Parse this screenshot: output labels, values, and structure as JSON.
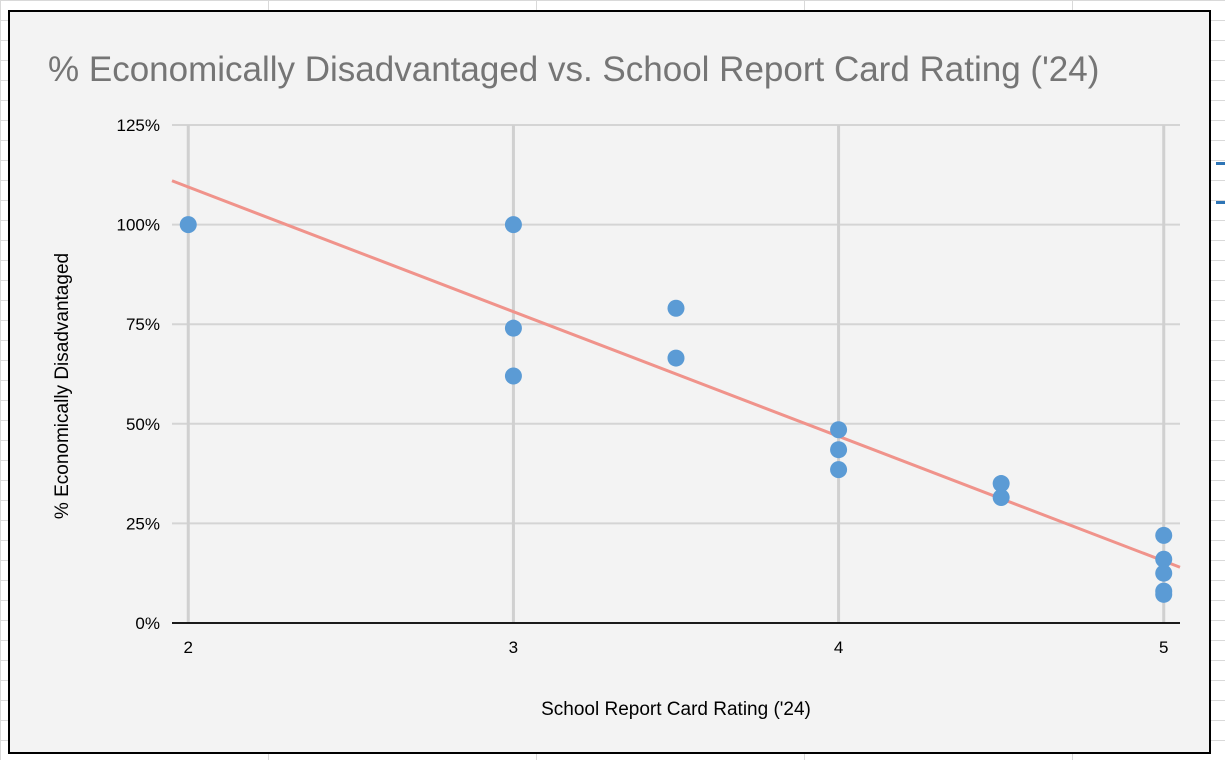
{
  "chart_data": {
    "type": "scatter",
    "title": "% Economically Disadvantaged vs. School Report Card Rating ('24)",
    "xlabel": "School Report Card Rating ('24)",
    "ylabel": "% Economically Disadvantaged",
    "xlim": [
      1.95,
      5.05
    ],
    "ylim": [
      0,
      1.25
    ],
    "xticks": [
      2,
      3,
      4,
      5
    ],
    "xtick_labels": [
      "2",
      "3",
      "4",
      "5"
    ],
    "yticks": [
      0,
      0.25,
      0.5,
      0.75,
      1.0,
      1.25
    ],
    "ytick_labels": [
      "0%",
      "25%",
      "50%",
      "75%",
      "100%",
      "125%"
    ],
    "grid": {
      "horizontal": true,
      "vertical": true
    },
    "legend": "none",
    "series": [
      {
        "marker_color": "#5b9bd5",
        "points": [
          {
            "x": 2,
            "y": 1.0
          },
          {
            "x": 3,
            "y": 1.0
          },
          {
            "x": 3,
            "y": 0.74
          },
          {
            "x": 3,
            "y": 0.62
          },
          {
            "x": 3.5,
            "y": 0.79
          },
          {
            "x": 3.5,
            "y": 0.665
          },
          {
            "x": 4,
            "y": 0.485
          },
          {
            "x": 4,
            "y": 0.435
          },
          {
            "x": 4,
            "y": 0.385
          },
          {
            "x": 4.5,
            "y": 0.35
          },
          {
            "x": 4.5,
            "y": 0.315
          },
          {
            "x": 5,
            "y": 0.22
          },
          {
            "x": 5,
            "y": 0.16
          },
          {
            "x": 5,
            "y": 0.125
          },
          {
            "x": 5,
            "y": 0.08
          },
          {
            "x": 5,
            "y": 0.072
          }
        ]
      }
    ],
    "trendline": {
      "type": "linear",
      "color": "#f0938b",
      "start": {
        "x": 1.95,
        "y": 1.11
      },
      "end": {
        "x": 5.05,
        "y": 0.14
      }
    }
  }
}
